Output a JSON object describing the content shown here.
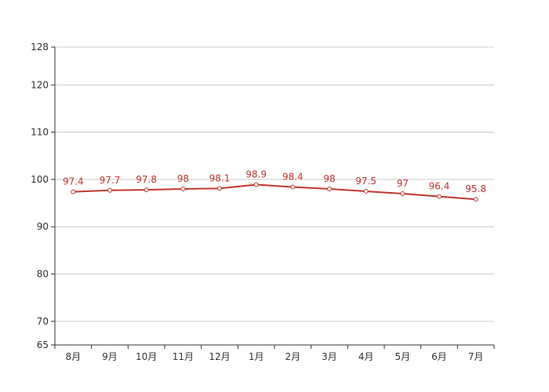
{
  "chart_data": {
    "type": "line",
    "title": "",
    "xlabel": "",
    "ylabel": "",
    "categories": [
      "8月",
      "9月",
      "10月",
      "11月",
      "12月",
      "1月",
      "2月",
      "3月",
      "4月",
      "5月",
      "6月",
      "7月"
    ],
    "series": [
      {
        "values": [
          97.4,
          97.7,
          97.8,
          98,
          98.1,
          98.9,
          98.4,
          98,
          97.5,
          97,
          96.4,
          95.8
        ],
        "color": "#c23531"
      }
    ],
    "ylim": [
      65,
      128
    ],
    "yticks": [
      65,
      70,
      80,
      90,
      100,
      110,
      120,
      128
    ],
    "grid": true,
    "legend": "none"
  }
}
